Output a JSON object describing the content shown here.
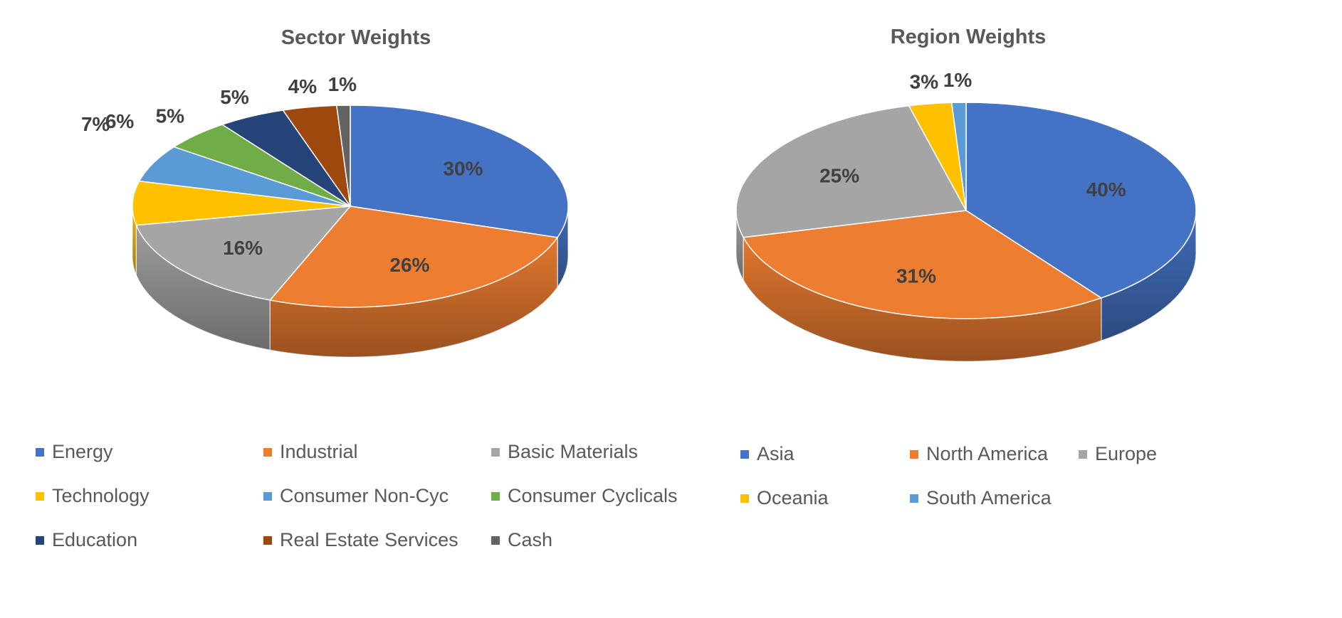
{
  "chart_data": [
    {
      "type": "pie",
      "title": "Sector Weights",
      "categories": [
        "Energy",
        "Industrial",
        "Basic Materials",
        "Technology",
        "Consumer Non-Cyc",
        "Consumer Cyclicals",
        "Education",
        "Real Estate Services",
        "Cash"
      ],
      "values": [
        30,
        26,
        16,
        7,
        6,
        5,
        5,
        4,
        1
      ],
      "labels": [
        "30%",
        "26%",
        "16%",
        "7%",
        "6%",
        "5%",
        "5%",
        "4%",
        "1%"
      ],
      "colors": [
        "#4472C4",
        "#ED7D31",
        "#A5A5A5",
        "#FFC000",
        "#5B9BD5",
        "#70AD47",
        "#264478",
        "#9E480E",
        "#636363"
      ],
      "style": "3d-pie",
      "legend_position": "bottom"
    },
    {
      "type": "pie",
      "title": "Region Weights",
      "categories": [
        "Asia",
        "North America",
        "Europe",
        "Oceania",
        "South America"
      ],
      "values": [
        40,
        31,
        25,
        3,
        1
      ],
      "labels": [
        "40%",
        "31%",
        "25%",
        "3%",
        "1%"
      ],
      "colors": [
        "#4472C4",
        "#ED7D31",
        "#A5A5A5",
        "#FFC000",
        "#5B9BD5"
      ],
      "style": "3d-pie",
      "legend_position": "bottom"
    }
  ]
}
